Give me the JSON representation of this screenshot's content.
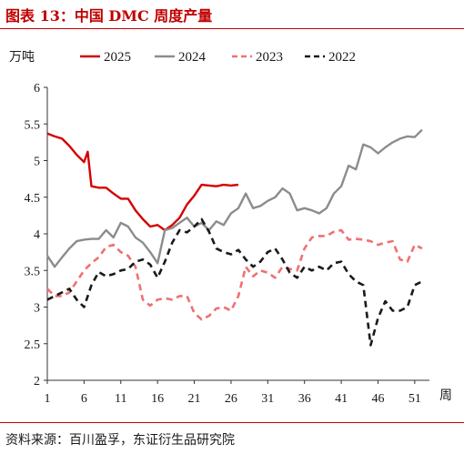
{
  "figure": {
    "title": "图表 13：中国 DMC 周度产量",
    "source": "资料来源：百川盈孚，东证衍生品研究院",
    "title_color": "#c00000"
  },
  "chart_data": {
    "type": "line",
    "ylabel": "万吨",
    "xlabel": "周",
    "ylim": [
      2,
      6
    ],
    "yticks": [
      "2",
      "2.5",
      "3",
      "3.5",
      "4",
      "4.5",
      "5",
      "5.5",
      "6"
    ],
    "xlim": [
      1,
      53
    ],
    "xticks": [
      "1",
      "6",
      "11",
      "16",
      "21",
      "26",
      "31",
      "36",
      "41",
      "46",
      "51"
    ],
    "grid": false,
    "legend_position": "top",
    "series": [
      {
        "name": "2025",
        "color": "#d40000",
        "dash": "solid",
        "x": [
          1,
          2,
          3,
          4,
          5,
          6,
          6.5,
          7,
          8,
          9,
          10,
          11,
          12,
          13,
          14,
          15,
          16,
          17,
          18,
          19,
          20,
          21,
          22,
          23,
          24,
          25,
          26,
          27
        ],
        "y": [
          5.37,
          5.33,
          5.3,
          5.2,
          5.08,
          4.98,
          5.12,
          4.65,
          4.63,
          4.63,
          4.55,
          4.48,
          4.48,
          4.32,
          4.2,
          4.1,
          4.12,
          4.05,
          4.12,
          4.22,
          4.4,
          4.52,
          4.67,
          4.66,
          4.65,
          4.67,
          4.66,
          4.67
        ]
      },
      {
        "name": "2024",
        "color": "#8c8c8c",
        "dash": "solid",
        "x": [
          1,
          2,
          3,
          4,
          5,
          6,
          7,
          8,
          9,
          10,
          11,
          12,
          13,
          14,
          15,
          16,
          17,
          18,
          19,
          20,
          21,
          22,
          23,
          24,
          25,
          26,
          27,
          28,
          29,
          30,
          31,
          32,
          33,
          34,
          35,
          36,
          37,
          38,
          39,
          40,
          41,
          42,
          43,
          44,
          45,
          46,
          47,
          48,
          49,
          50,
          51,
          52
        ],
        "y": [
          3.7,
          3.55,
          3.68,
          3.8,
          3.9,
          3.92,
          3.93,
          3.93,
          4.05,
          3.95,
          4.15,
          4.1,
          3.95,
          3.88,
          3.75,
          3.6,
          4.05,
          4.08,
          4.15,
          4.22,
          4.1,
          4.15,
          4.05,
          4.17,
          4.12,
          4.28,
          4.35,
          4.55,
          4.35,
          4.38,
          4.45,
          4.5,
          4.62,
          4.55,
          4.32,
          4.35,
          4.32,
          4.28,
          4.35,
          4.55,
          4.65,
          4.93,
          4.88,
          5.22,
          5.18,
          5.1,
          5.18,
          5.25,
          5.3,
          5.33,
          5.32,
          5.42
        ]
      },
      {
        "name": "2023",
        "color": "#f07070",
        "dash": "dashed",
        "x": [
          1,
          2,
          3,
          4,
          5,
          6,
          7,
          8,
          9,
          10,
          11,
          12,
          13,
          14,
          15,
          16,
          17,
          18,
          19,
          20,
          21,
          22,
          23,
          24,
          25,
          26,
          27,
          28,
          29,
          30,
          31,
          32,
          33,
          34,
          35,
          36,
          37,
          38,
          39,
          40,
          41,
          42,
          43,
          44,
          45,
          46,
          47,
          48,
          49,
          50,
          51,
          52
        ],
        "y": [
          3.25,
          3.15,
          3.15,
          3.2,
          3.35,
          3.5,
          3.6,
          3.68,
          3.82,
          3.85,
          3.75,
          3.7,
          3.55,
          3.1,
          3.02,
          3.1,
          3.12,
          3.1,
          3.15,
          3.15,
          2.92,
          2.83,
          2.88,
          2.98,
          3.0,
          2.95,
          3.15,
          3.55,
          3.42,
          3.5,
          3.47,
          3.4,
          3.55,
          3.52,
          3.5,
          3.8,
          3.95,
          3.97,
          3.97,
          4.03,
          4.05,
          3.92,
          3.93,
          3.92,
          3.9,
          3.85,
          3.88,
          3.9,
          3.65,
          3.62,
          3.85,
          3.8
        ]
      },
      {
        "name": "2022",
        "color": "#1a1a1a",
        "dash": "dashed",
        "x": [
          1,
          2,
          3,
          4,
          5,
          6,
          7,
          8,
          9,
          10,
          11,
          12,
          13,
          14,
          15,
          16,
          17,
          18,
          19,
          20,
          21,
          22,
          23,
          24,
          25,
          26,
          27,
          28,
          29,
          30,
          31,
          32,
          33,
          34,
          35,
          36,
          37,
          38,
          39,
          40,
          41,
          42,
          43,
          44,
          45,
          46,
          47,
          48,
          49,
          50,
          51,
          52
        ],
        "y": [
          3.1,
          3.15,
          3.2,
          3.25,
          3.1,
          3.0,
          3.3,
          3.48,
          3.42,
          3.45,
          3.5,
          3.52,
          3.62,
          3.65,
          3.58,
          3.4,
          3.62,
          3.88,
          4.05,
          4.02,
          4.1,
          4.2,
          4.03,
          3.8,
          3.75,
          3.72,
          3.78,
          3.65,
          3.55,
          3.62,
          3.75,
          3.8,
          3.65,
          3.47,
          3.4,
          3.55,
          3.5,
          3.55,
          3.5,
          3.6,
          3.62,
          3.45,
          3.35,
          3.3,
          2.48,
          2.85,
          3.08,
          2.95,
          2.95,
          3.0,
          3.3,
          3.35
        ]
      }
    ]
  }
}
